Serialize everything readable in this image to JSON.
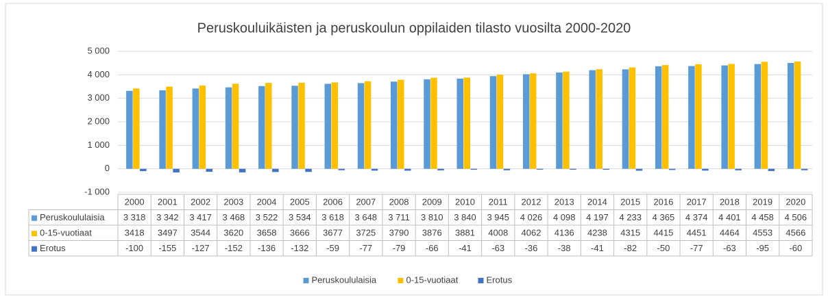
{
  "chart_data": {
    "type": "bar",
    "title": "Peruskouluikäisten ja peruskoulun oppilaiden tilasto vuosilta 2000-2020",
    "categories": [
      "2000",
      "2001",
      "2002",
      "2003",
      "2004",
      "2005",
      "2006",
      "2007",
      "2008",
      "2009",
      "2010",
      "2011",
      "2012",
      "2013",
      "2014",
      "2015",
      "2016",
      "2017",
      "2018",
      "2019",
      "2020"
    ],
    "series": [
      {
        "name": "Peruskoululaisia",
        "color": "#5b9bd5",
        "values": [
          3318,
          3342,
          3417,
          3468,
          3522,
          3534,
          3618,
          3648,
          3711,
          3810,
          3840,
          3945,
          4026,
          4098,
          4197,
          4233,
          4365,
          4374,
          4401,
          4458,
          4506
        ],
        "value_labels": [
          "3 318",
          "3 342",
          "3 417",
          "3 468",
          "3 522",
          "3 534",
          "3 618",
          "3 648",
          "3 711",
          "3 810",
          "3 840",
          "3 945",
          "4 026",
          "4 098",
          "4 197",
          "4 233",
          "4 365",
          "4 374",
          "4 401",
          "4 458",
          "4 506"
        ]
      },
      {
        "name": "0-15-vuotiaat",
        "color": "#ffc000",
        "values": [
          3418,
          3497,
          3544,
          3620,
          3658,
          3666,
          3677,
          3725,
          3790,
          3876,
          3881,
          4008,
          4062,
          4136,
          4238,
          4315,
          4415,
          4451,
          4464,
          4553,
          4566
        ]
      },
      {
        "name": "Erotus",
        "color": "#4472c4",
        "values": [
          -100,
          -155,
          -127,
          -152,
          -136,
          -132,
          -59,
          -77,
          -79,
          -66,
          -41,
          -63,
          -36,
          -38,
          -41,
          -82,
          -50,
          -77,
          -63,
          -95,
          -60
        ]
      }
    ],
    "ylim": [
      -1000,
      5000
    ],
    "yticks": [
      {
        "value": -1000,
        "label": "-1 000"
      },
      0,
      {
        "value": 1000,
        "label": "1 000"
      },
      {
        "value": 2000,
        "label": "2 000"
      },
      {
        "value": 3000,
        "label": "3 000"
      },
      {
        "value": 4000,
        "label": "4 000"
      },
      {
        "value": 5000,
        "label": "5 000"
      }
    ],
    "grid": true,
    "legend": "bottom"
  }
}
